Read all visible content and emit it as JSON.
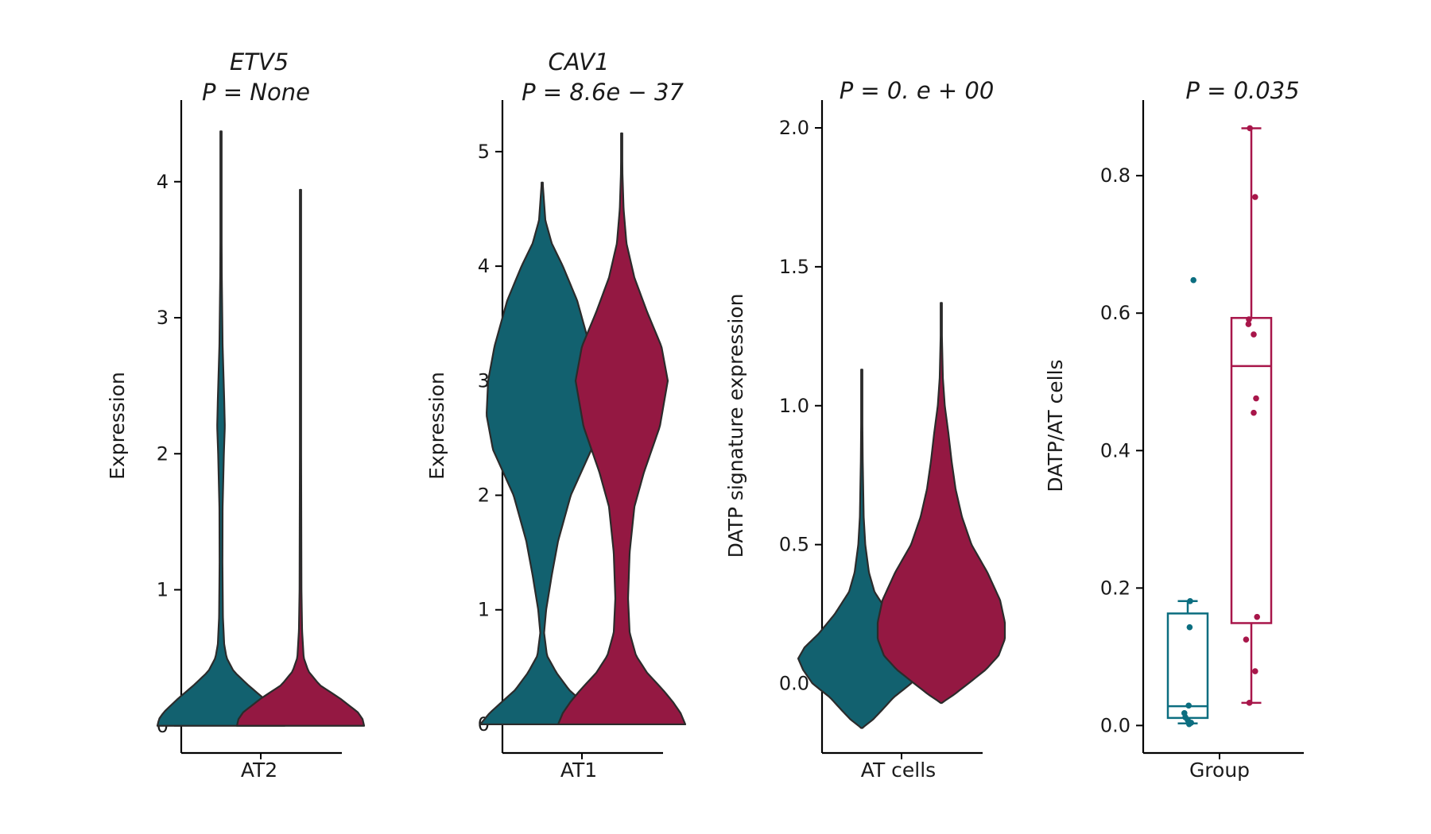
{
  "colors": {
    "group_a": "#12616f",
    "group_b": "#941842",
    "box_a": "#0c6e80",
    "box_b": "#a8164a",
    "outline": "#2b2b2b"
  },
  "chart_data": [
    {
      "type": "violin",
      "title_gene": "ETV5",
      "title_p": "P = None",
      "xlabel": "AT2",
      "ylabel": "Expression",
      "ylim": [
        -0.2,
        4.6
      ],
      "yticks": [
        0,
        1,
        2,
        3,
        4
      ],
      "yticklabels": [
        "0",
        "1",
        "2",
        "3",
        "4"
      ],
      "cut_at_zero": true,
      "series": [
        {
          "color_key": "group_a",
          "max": 4.37,
          "profile": [
            [
              0,
              0.4
            ],
            [
              0.05,
              0.39
            ],
            [
              0.1,
              0.36
            ],
            [
              0.2,
              0.27
            ],
            [
              0.3,
              0.17
            ],
            [
              0.4,
              0.08
            ],
            [
              0.5,
              0.035
            ],
            [
              0.6,
              0.02
            ],
            [
              0.8,
              0.012
            ],
            [
              1.2,
              0.009
            ],
            [
              1.6,
              0.01
            ],
            [
              2.0,
              0.018
            ],
            [
              2.2,
              0.024
            ],
            [
              2.4,
              0.02
            ],
            [
              2.8,
              0.01
            ],
            [
              3.3,
              0.005
            ],
            [
              3.8,
              0.003
            ],
            [
              4.37,
              0.001
            ]
          ]
        },
        {
          "color_key": "group_b",
          "max": 3.94,
          "profile": [
            [
              0,
              0.4
            ],
            [
              0.05,
              0.39
            ],
            [
              0.1,
              0.36
            ],
            [
              0.2,
              0.25
            ],
            [
              0.3,
              0.12
            ],
            [
              0.4,
              0.05
            ],
            [
              0.5,
              0.02
            ],
            [
              0.7,
              0.01
            ],
            [
              1.0,
              0.006
            ],
            [
              1.5,
              0.005
            ],
            [
              2.0,
              0.004
            ],
            [
              2.5,
              0.003
            ],
            [
              3.0,
              0.002
            ],
            [
              3.5,
              0.0015
            ],
            [
              3.94,
              0.001
            ]
          ]
        }
      ]
    },
    {
      "type": "violin",
      "title_gene": "CAV1",
      "title_p": "P = 8.6e − 37",
      "xlabel": "AT1",
      "ylabel": "Expression",
      "ylim": [
        -0.25,
        5.45
      ],
      "yticks": [
        0,
        1,
        2,
        3,
        4,
        5
      ],
      "yticklabels": [
        "0",
        "1",
        "2",
        "3",
        "4",
        "5"
      ],
      "cut_at_zero": true,
      "series": [
        {
          "color_key": "group_a",
          "max": 4.73,
          "profile": [
            [
              0,
              0.39
            ],
            [
              0.1,
              0.33
            ],
            [
              0.2,
              0.25
            ],
            [
              0.3,
              0.17
            ],
            [
              0.45,
              0.09
            ],
            [
              0.6,
              0.03
            ],
            [
              0.8,
              0.012
            ],
            [
              1.0,
              0.025
            ],
            [
              1.3,
              0.06
            ],
            [
              1.6,
              0.1
            ],
            [
              2.0,
              0.18
            ],
            [
              2.4,
              0.31
            ],
            [
              2.7,
              0.35
            ],
            [
              3.0,
              0.34
            ],
            [
              3.3,
              0.3
            ],
            [
              3.7,
              0.22
            ],
            [
              4.0,
              0.13
            ],
            [
              4.2,
              0.06
            ],
            [
              4.4,
              0.02
            ],
            [
              4.73,
              0.003
            ]
          ]
        },
        {
          "color_key": "group_b",
          "max": 5.16,
          "profile": [
            [
              0,
              0.4
            ],
            [
              0.1,
              0.37
            ],
            [
              0.2,
              0.32
            ],
            [
              0.3,
              0.26
            ],
            [
              0.45,
              0.16
            ],
            [
              0.6,
              0.09
            ],
            [
              0.8,
              0.05
            ],
            [
              1.1,
              0.04
            ],
            [
              1.5,
              0.05
            ],
            [
              1.9,
              0.08
            ],
            [
              2.2,
              0.14
            ],
            [
              2.6,
              0.24
            ],
            [
              3.0,
              0.29
            ],
            [
              3.3,
              0.25
            ],
            [
              3.6,
              0.16
            ],
            [
              3.9,
              0.08
            ],
            [
              4.2,
              0.03
            ],
            [
              4.5,
              0.012
            ],
            [
              4.8,
              0.005
            ],
            [
              5.16,
              0.002
            ]
          ]
        }
      ]
    },
    {
      "type": "violin",
      "title_p": "P = 0. e + 00",
      "xlabel": "AT cells",
      "ylabel": "DATP signature expression",
      "ylim": [
        -0.25,
        2.1
      ],
      "yticks": [
        0.0,
        0.5,
        1.0,
        1.5,
        2.0
      ],
      "yticklabels": [
        "0.0",
        "0.5",
        "1.0",
        "1.5",
        "2.0"
      ],
      "cut_at_zero": false,
      "series": [
        {
          "color_key": "group_a",
          "min": -0.16,
          "max": 1.13,
          "profile": [
            [
              -0.16,
              0.002
            ],
            [
              -0.13,
              0.07
            ],
            [
              -0.1,
              0.12
            ],
            [
              -0.05,
              0.2
            ],
            [
              0.0,
              0.31
            ],
            [
              0.05,
              0.37
            ],
            [
              0.09,
              0.4
            ],
            [
              0.13,
              0.36
            ],
            [
              0.18,
              0.27
            ],
            [
              0.25,
              0.17
            ],
            [
              0.33,
              0.08
            ],
            [
              0.4,
              0.045
            ],
            [
              0.5,
              0.022
            ],
            [
              0.6,
              0.012
            ],
            [
              0.8,
              0.006
            ],
            [
              1.0,
              0.003
            ],
            [
              1.13,
              0.001
            ]
          ]
        },
        {
          "color_key": "group_b",
          "min": -0.07,
          "max": 1.37,
          "profile": [
            [
              -0.07,
              0.002
            ],
            [
              -0.04,
              0.08
            ],
            [
              0.0,
              0.17
            ],
            [
              0.05,
              0.28
            ],
            [
              0.1,
              0.36
            ],
            [
              0.16,
              0.4
            ],
            [
              0.22,
              0.4
            ],
            [
              0.3,
              0.37
            ],
            [
              0.4,
              0.29
            ],
            [
              0.5,
              0.19
            ],
            [
              0.6,
              0.13
            ],
            [
              0.7,
              0.09
            ],
            [
              0.8,
              0.065
            ],
            [
              0.9,
              0.045
            ],
            [
              1.0,
              0.022
            ],
            [
              1.1,
              0.01
            ],
            [
              1.25,
              0.004
            ],
            [
              1.37,
              0.001
            ]
          ]
        }
      ]
    },
    {
      "type": "box",
      "title_p": "P = 0.035",
      "xlabel": "Group",
      "ylabel": "DATP/AT cells",
      "ylim": [
        -0.04,
        0.91
      ],
      "yticks": [
        0.0,
        0.2,
        0.4,
        0.6,
        0.8
      ],
      "yticklabels": [
        "0.0",
        "0.2",
        "0.4",
        "0.6",
        "0.8"
      ],
      "series": [
        {
          "color_key": "box_a",
          "q1": 0.011,
          "median": 0.028,
          "q3": 0.163,
          "whisker_low": 0.003,
          "whisker_high": 0.181,
          "points": [
            0.648,
            0.181,
            0.143,
            0.029,
            0.018,
            0.012,
            0.008,
            0.004,
            0.002
          ],
          "jitter": [
            0.12,
            0.05,
            0.04,
            0.02,
            -0.07,
            -0.05,
            0.0,
            0.07,
            0.03
          ]
        },
        {
          "color_key": "box_b",
          "q1": 0.149,
          "median": 0.523,
          "q3": 0.593,
          "whisker_low": 0.033,
          "whisker_high": 0.869,
          "points": [
            0.869,
            0.769,
            0.591,
            0.584,
            0.569,
            0.476,
            0.455,
            0.158,
            0.125,
            0.079,
            0.033
          ],
          "jitter": [
            -0.03,
            0.08,
            -0.05,
            -0.06,
            0.05,
            0.1,
            0.05,
            0.12,
            -0.11,
            0.08,
            -0.04
          ]
        }
      ]
    }
  ]
}
